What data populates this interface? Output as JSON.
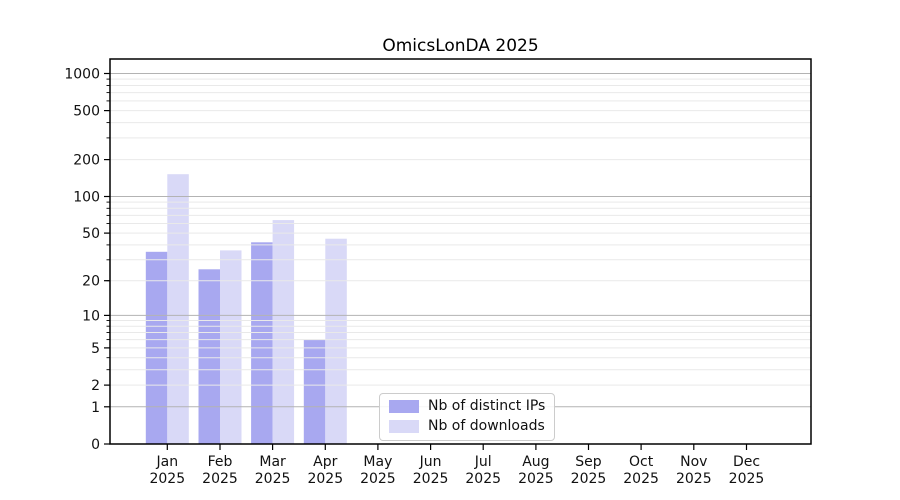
{
  "figure_title": "OmicsLonDA 2025",
  "chart_data": {
    "type": "bar",
    "title": "OmicsLonDA 2025",
    "categories": [
      "Jan",
      "Feb",
      "Mar",
      "Apr",
      "May",
      "Jun",
      "Jul",
      "Aug",
      "Sep",
      "Oct",
      "Nov",
      "Dec"
    ],
    "year": "2025",
    "series": [
      {
        "name": "Nb of distinct IPs",
        "color": "#a8a8f0",
        "values": [
          35,
          25,
          42,
          6,
          0,
          0,
          0,
          0,
          0,
          0,
          0,
          0
        ]
      },
      {
        "name": "Nb of downloads",
        "color": "#d9d9f7",
        "values": [
          152,
          36,
          64,
          45,
          0,
          0,
          0,
          0,
          0,
          0,
          0,
          0
        ]
      }
    ],
    "yscale": "log1p",
    "yticks": [
      0,
      1,
      2,
      5,
      10,
      20,
      50,
      100,
      200,
      500,
      1000
    ],
    "ylim": [
      0,
      1310
    ],
    "xlabel": "",
    "ylabel": "",
    "grid": {
      "horizontal_major": true,
      "horizontal_minor": true,
      "vertical": false
    },
    "legend_position": "lower center",
    "colors": {
      "major_grid": "#b3b3b3",
      "minor_grid": "#e9e9e9",
      "spine": "#000000",
      "text": "#111111",
      "background": "#ffffff"
    }
  }
}
